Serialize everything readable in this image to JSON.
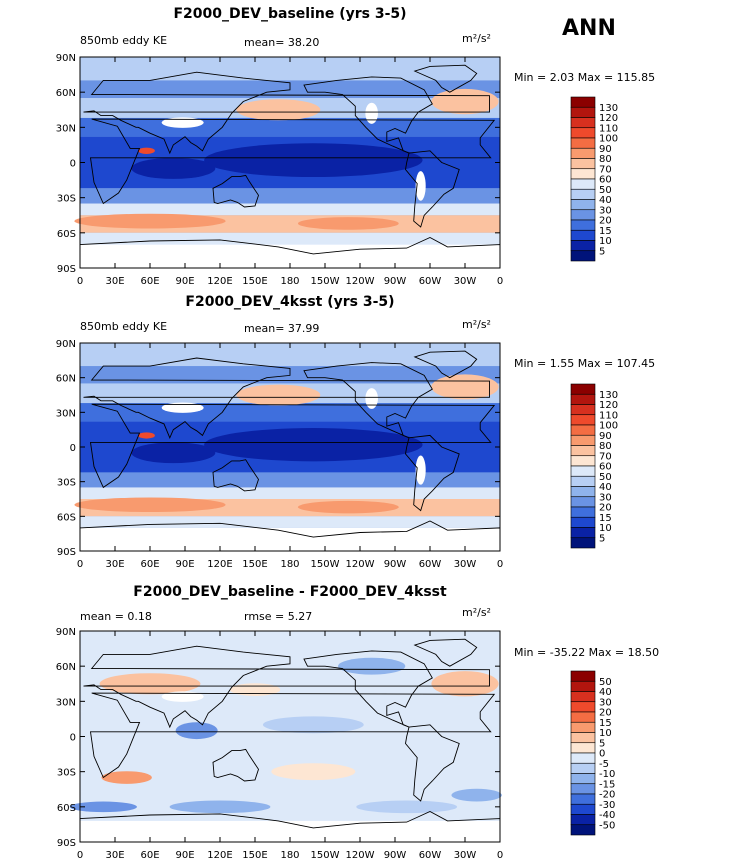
{
  "season": "ANN",
  "panels": [
    {
      "title": "F2000_DEV_baseline (yrs 3-5)",
      "left_label": "850mb eddy KE",
      "center_label": "mean=  38.20",
      "units": "m²/s²",
      "minmax": "Min =   2.03 Max = 115.85"
    },
    {
      "title": "F2000_DEV_4ksst (yrs 3-5)",
      "left_label": "850mb eddy KE",
      "center_label": "mean=  37.99",
      "units": "m²/s²",
      "minmax": "Min =   1.55 Max = 107.45"
    },
    {
      "title": "F2000_DEV_baseline - F2000_DEV_4ksst",
      "left_label": "mean =   0.18",
      "center_label": "rmse =   5.27",
      "units": "m²/s²",
      "minmax": "Min = -35.22 Max =  18.50"
    }
  ],
  "chart_data": [
    {
      "type": "heatmap",
      "title": "F2000_DEV_baseline (yrs 3-5)",
      "variable": "850mb eddy KE",
      "mean": 38.2,
      "min": 2.03,
      "max": 115.85,
      "units": "m2/s2",
      "colorbar_levels": [
        "130",
        "120",
        "110",
        "100",
        "90",
        "80",
        "70",
        "60",
        "50",
        "40",
        "30",
        "20",
        "15",
        "10",
        "5"
      ],
      "colorbar_colors": [
        "#8b0000",
        "#b2150e",
        "#d7301f",
        "#ef4a2c",
        "#f46d43",
        "#f89a6e",
        "#fbc2a0",
        "#fde6d3",
        "#dde9f9",
        "#b7cff4",
        "#8fb3ec",
        "#6a93e4",
        "#3f6fdd",
        "#1e48cf",
        "#0a22a5",
        "#00137a"
      ],
      "xticks": [
        "0",
        "30E",
        "60E",
        "90E",
        "120E",
        "150E",
        "180",
        "150W",
        "120W",
        "90W",
        "60W",
        "30W",
        "0"
      ],
      "yticks": [
        "90N",
        "60N",
        "30N",
        "0",
        "30S",
        "60S",
        "90S"
      ]
    },
    {
      "type": "heatmap",
      "title": "F2000_DEV_4ksst (yrs 3-5)",
      "variable": "850mb eddy KE",
      "mean": 37.99,
      "min": 1.55,
      "max": 107.45,
      "units": "m2/s2",
      "colorbar_levels": [
        "130",
        "120",
        "110",
        "100",
        "90",
        "80",
        "70",
        "60",
        "50",
        "40",
        "30",
        "20",
        "15",
        "10",
        "5"
      ],
      "colorbar_colors": [
        "#8b0000",
        "#b2150e",
        "#d7301f",
        "#ef4a2c",
        "#f46d43",
        "#f89a6e",
        "#fbc2a0",
        "#fde6d3",
        "#dde9f9",
        "#b7cff4",
        "#8fb3ec",
        "#6a93e4",
        "#3f6fdd",
        "#1e48cf",
        "#0a22a5",
        "#00137a"
      ],
      "xticks": [
        "0",
        "30E",
        "60E",
        "90E",
        "120E",
        "150E",
        "180",
        "150W",
        "120W",
        "90W",
        "60W",
        "30W",
        "0"
      ],
      "yticks": [
        "90N",
        "60N",
        "30N",
        "0",
        "30S",
        "60S",
        "90S"
      ]
    },
    {
      "type": "heatmap",
      "title": "F2000_DEV_baseline - F2000_DEV_4ksst",
      "mean": 0.18,
      "rmse": 5.27,
      "min": -35.22,
      "max": 18.5,
      "units": "m2/s2",
      "colorbar_levels": [
        "50",
        "40",
        "30",
        "20",
        "15",
        "10",
        "5",
        "0",
        "-5",
        "-10",
        "-15",
        "-20",
        "-30",
        "-40",
        "-50"
      ],
      "colorbar_colors": [
        "#8b0000",
        "#b2150e",
        "#d7301f",
        "#ef4a2c",
        "#f46d43",
        "#f89a6e",
        "#fbc2a0",
        "#fde6d3",
        "#dde9f9",
        "#b7cff4",
        "#8fb3ec",
        "#6a93e4",
        "#3f6fdd",
        "#1e48cf",
        "#0a22a5",
        "#00137a"
      ],
      "xticks": [
        "0",
        "30E",
        "60E",
        "90E",
        "120E",
        "150E",
        "180",
        "150W",
        "120W",
        "90W",
        "60W",
        "30W",
        "0"
      ],
      "yticks": [
        "90N",
        "60N",
        "30N",
        "0",
        "30S",
        "60S",
        "90S"
      ]
    }
  ]
}
